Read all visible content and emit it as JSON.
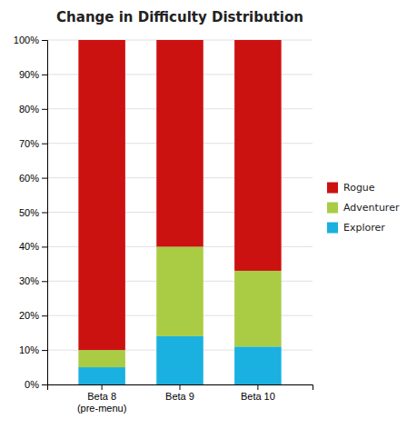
{
  "chart_data": {
    "type": "bar",
    "title": "Change in Difficulty Distribution",
    "categories": [
      "Beta 8\n(pre-menu)",
      "Beta 9",
      "Beta 10"
    ],
    "series": [
      {
        "name": "Explorer",
        "color": "#1ab0e0",
        "values": [
          5,
          14,
          11
        ]
      },
      {
        "name": "Adventurer",
        "color": "#aacc44",
        "values": [
          5,
          26,
          22
        ]
      },
      {
        "name": "Rogue",
        "color": "#cc1111",
        "values": [
          90,
          60,
          67
        ]
      }
    ],
    "stacked": true,
    "ylim": [
      0,
      100
    ],
    "yticks": [
      {
        "value": 0,
        "label": "0%"
      },
      {
        "value": 10,
        "label": "10%"
      },
      {
        "value": 20,
        "label": "20%"
      },
      {
        "value": 30,
        "label": "30%"
      },
      {
        "value": 40,
        "label": "40%"
      },
      {
        "value": 50,
        "label": "50%"
      },
      {
        "value": 60,
        "label": "60%"
      },
      {
        "value": 70,
        "label": "70%"
      },
      {
        "value": 80,
        "label": "80%"
      },
      {
        "value": 90,
        "label": "90%"
      },
      {
        "value": 100,
        "label": "100%"
      }
    ],
    "grid": true,
    "legend": "right"
  }
}
